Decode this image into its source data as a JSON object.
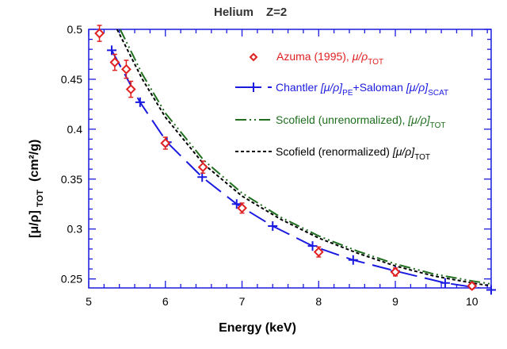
{
  "chart_data": {
    "type": "scatter",
    "title": "Helium",
    "title_z": "Z=2",
    "xlabel": "Energy (keV)",
    "ylabel": "[μ/ρ]",
    "ylabel_sub": "TOT",
    "ylabel_unit": "(cm²/g)",
    "xlim": [
      5,
      10.25
    ],
    "ylim": [
      0.241,
      0.5
    ],
    "x_ticks": [
      5,
      6,
      7,
      8,
      9,
      10
    ],
    "y_ticks": [
      0.25,
      0.3,
      0.35,
      0.4,
      0.45,
      0.5
    ],
    "y_tick_labels": [
      "0.25",
      "0.3",
      "0.35",
      "0.4",
      "0.45",
      "0.5"
    ],
    "grid": false,
    "legend_position": "top-right",
    "colors": {
      "azuma": "#e02020",
      "chantler": "#1a1ae0",
      "scofield_unren": "#1e6e1e",
      "scofield_ren": "#000000",
      "axes": "#1a1ae0"
    },
    "series": [
      {
        "name": "Azuma (1995),",
        "name_math": "μ/ρ",
        "name_sub": "TOT",
        "style": "diamond-markers-with-error-bars",
        "x": [
          5.14,
          5.34,
          5.49,
          5.55,
          6.0,
          6.49,
          7.0,
          8.0,
          9.0,
          10.0
        ],
        "y": [
          0.496,
          0.467,
          0.46,
          0.44,
          0.386,
          0.362,
          0.321,
          0.277,
          0.257,
          0.243
        ],
        "err": [
          0.008,
          0.008,
          0.009,
          0.008,
          0.006,
          0.006,
          0.005,
          0.005,
          0.004,
          0.003
        ]
      },
      {
        "name": "Chantler",
        "name_math": "[μ/ρ]",
        "name_sub": "PE",
        "name2": "+Saloman",
        "name2_math": "[μ/ρ]",
        "name2_sub": "SCAT",
        "style": "long-dash-with-plus-markers",
        "x": [
          5.3,
          5.67,
          6.02,
          6.48,
          6.93,
          7.4,
          7.92,
          8.45,
          9.0,
          9.65,
          10.25
        ],
        "y": [
          0.479,
          0.427,
          0.387,
          0.352,
          0.325,
          0.303,
          0.283,
          0.269,
          0.258,
          0.246,
          0.239
        ]
      },
      {
        "name": "Scofield (unrenormalized),",
        "name_math": "[μ/ρ]",
        "name_sub": "TOT",
        "style": "dash-dot",
        "x": [
          5.41,
          5.7,
          6.0,
          6.5,
          7.0,
          7.5,
          8.0,
          8.5,
          9.0,
          9.5,
          10.0,
          10.25
        ],
        "y": [
          0.5,
          0.455,
          0.416,
          0.369,
          0.336,
          0.312,
          0.293,
          0.278,
          0.265,
          0.255,
          0.248,
          0.245
        ]
      },
      {
        "name": "Scofield (renormalized)",
        "name_math": "[μ/ρ]",
        "name_sub": "TOT",
        "style": "short-dash",
        "x": [
          5.37,
          5.7,
          6.0,
          6.5,
          7.0,
          7.5,
          8.0,
          8.5,
          9.0,
          9.5,
          10.0,
          10.25
        ],
        "y": [
          0.5,
          0.45,
          0.412,
          0.365,
          0.333,
          0.31,
          0.291,
          0.276,
          0.263,
          0.253,
          0.246,
          0.243
        ]
      }
    ]
  }
}
